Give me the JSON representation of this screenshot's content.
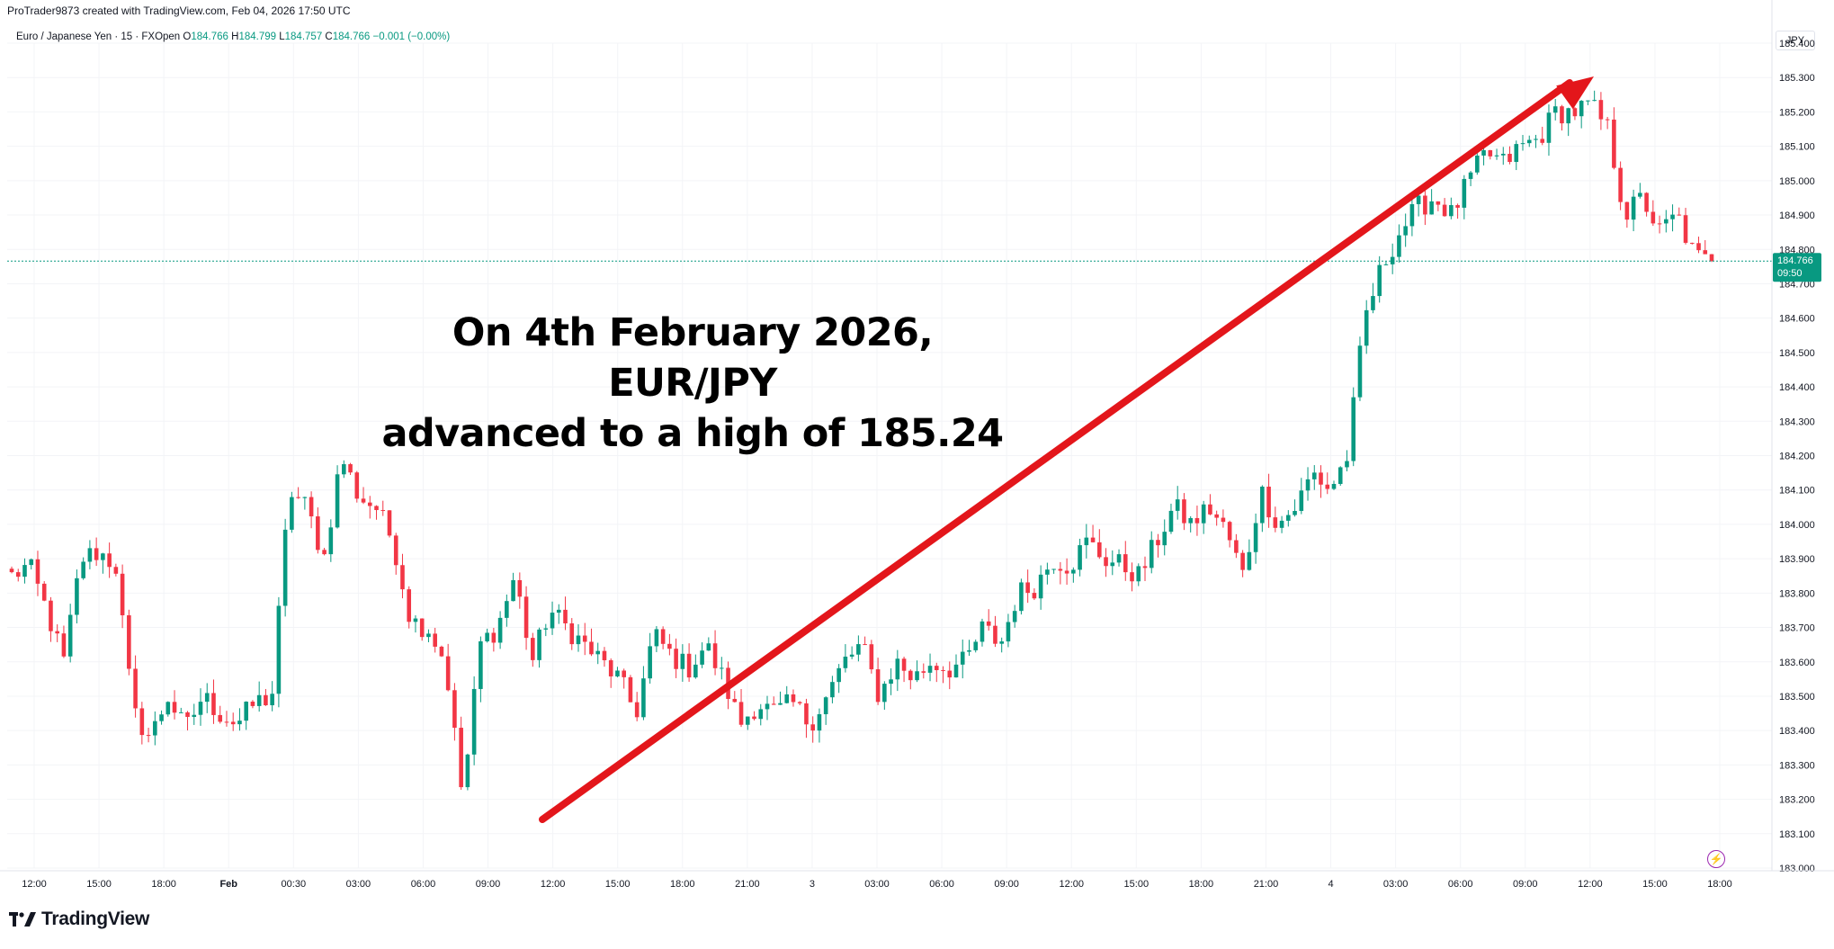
{
  "attribution": "ProTrader9873 created with TradingView.com, Feb 04, 2026 17:50 UTC",
  "legend": {
    "symbol": "Euro / Japanese Yen · 15 · FXOpen",
    "o_label": "O",
    "o": "184.766",
    "h_label": "H",
    "h": "184.799",
    "l_label": "L",
    "l": "184.757",
    "c_label": "C",
    "c": "184.766",
    "change": "−0.001 (−0.00%)"
  },
  "currency": "JPY",
  "price_tag": {
    "price": "184.766",
    "countdown": "09:50"
  },
  "annotation": {
    "line1": "On 4th February 2026, EUR/JPY",
    "line2": "advanced to a high of 185.24"
  },
  "brand": "TradingView",
  "colors": {
    "up": "#089981",
    "down": "#f23645",
    "arrow": "#e3161b",
    "last_price_line": "#089981"
  },
  "icons": {
    "logo": "tradingview-logo-icon",
    "flash": "lightning-icon"
  },
  "chart_data": {
    "type": "candlestick",
    "timeframe": "15",
    "ylim": [
      183.0,
      185.4
    ],
    "yticks": [
      "185.400",
      "185.300",
      "185.200",
      "185.100",
      "185.000",
      "184.900",
      "184.800",
      "184.700",
      "184.600",
      "184.500",
      "184.400",
      "184.300",
      "184.200",
      "184.100",
      "184.000",
      "183.900",
      "183.800",
      "183.700",
      "183.600",
      "183.500",
      "183.400",
      "183.300",
      "183.200",
      "183.100",
      "183.000"
    ],
    "xticks": [
      {
        "label": "12:00",
        "bold": false
      },
      {
        "label": "15:00",
        "bold": false
      },
      {
        "label": "18:00",
        "bold": false
      },
      {
        "label": "Feb",
        "bold": true
      },
      {
        "label": "00:30",
        "bold": false
      },
      {
        "label": "03:00",
        "bold": false
      },
      {
        "label": "06:00",
        "bold": false
      },
      {
        "label": "09:00",
        "bold": false
      },
      {
        "label": "12:00",
        "bold": false
      },
      {
        "label": "15:00",
        "bold": false
      },
      {
        "label": "18:00",
        "bold": false
      },
      {
        "label": "21:00",
        "bold": false
      },
      {
        "label": "3",
        "bold": false
      },
      {
        "label": "03:00",
        "bold": false
      },
      {
        "label": "06:00",
        "bold": false
      },
      {
        "label": "09:00",
        "bold": false
      },
      {
        "label": "12:00",
        "bold": false
      },
      {
        "label": "15:00",
        "bold": false
      },
      {
        "label": "18:00",
        "bold": false
      },
      {
        "label": "21:00",
        "bold": false
      },
      {
        "label": "4",
        "bold": false
      },
      {
        "label": "03:00",
        "bold": false
      },
      {
        "label": "06:00",
        "bold": false
      },
      {
        "label": "09:00",
        "bold": false
      },
      {
        "label": "12:00",
        "bold": false
      },
      {
        "label": "15:00",
        "bold": false
      },
      {
        "label": "18:00",
        "bold": false
      }
    ],
    "last_price": 184.766,
    "close_path": [
      183.85,
      183.88,
      183.75,
      183.6,
      183.9,
      183.92,
      183.88,
      183.45,
      183.38,
      183.5,
      183.4,
      183.5,
      183.45,
      183.42,
      183.48,
      183.5,
      184.1,
      184.05,
      183.9,
      184.2,
      184.08,
      184.05,
      183.95,
      183.72,
      183.7,
      183.6,
      183.2,
      183.65,
      183.7,
      183.85,
      183.6,
      183.75,
      183.7,
      183.65,
      183.6,
      183.55,
      183.45,
      183.68,
      183.62,
      183.58,
      183.65,
      183.55,
      183.42,
      183.48,
      183.45,
      183.48,
      183.42,
      183.5,
      183.6,
      183.65,
      183.5,
      183.6,
      183.55,
      183.6,
      183.58,
      183.6,
      183.7,
      183.65,
      183.8,
      183.82,
      183.9,
      183.88,
      183.95,
      183.9,
      183.88,
      183.85,
      183.95,
      184.05,
      184.0,
      184.05,
      183.98,
      183.85,
      184.1,
      184.0,
      184.05,
      184.15,
      184.1,
      184.2,
      184.6,
      184.75,
      184.85,
      184.92,
      184.95,
      184.9,
      185.0,
      185.08,
      185.05,
      185.1,
      185.12,
      185.2,
      185.2,
      185.22,
      185.15,
      184.9,
      184.95,
      184.85,
      184.9,
      184.78,
      184.76
    ],
    "candle_count": 262,
    "high": 185.24,
    "low": 183.18
  }
}
